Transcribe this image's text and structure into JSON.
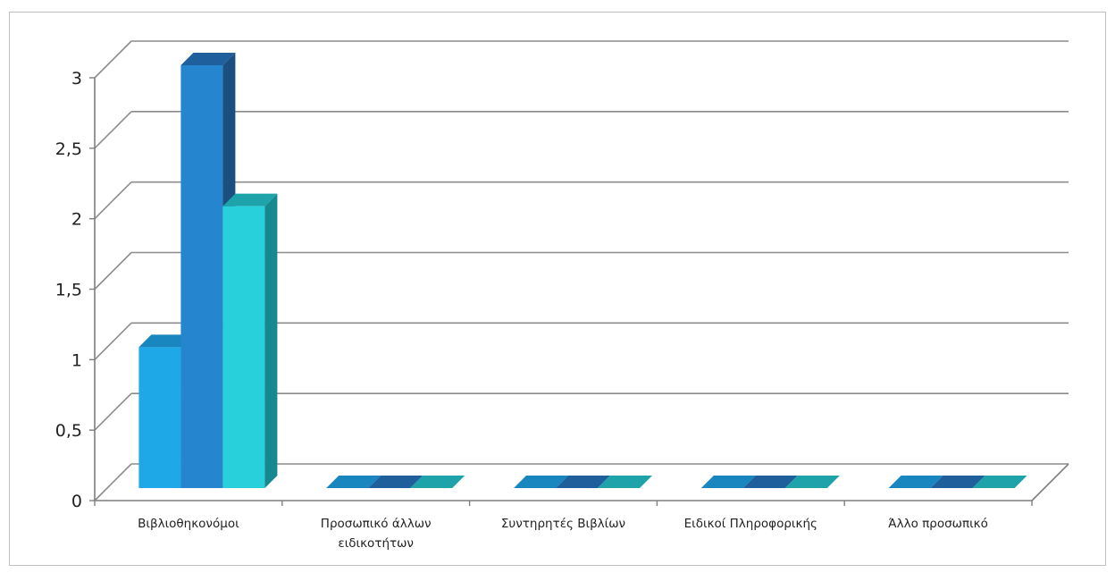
{
  "chart_data": {
    "type": "bar",
    "title": "",
    "xlabel": "",
    "ylabel": "",
    "categories": [
      "Βιβλιοθηκονόμοι",
      "Προσωπικό άλλων ειδικοτήτων",
      "Συντηρητές Βιβλίων",
      "Ειδικοί Πληροφορικής",
      "Άλλο προσωπικό"
    ],
    "category_lines": [
      [
        "Βιβλιοθηκονόμοι"
      ],
      [
        "Προσωπικό άλλων",
        "ειδικοτήτων"
      ],
      [
        "Συντηρητές Βιβλίων"
      ],
      [
        "Ειδικοί Πληροφορικής"
      ],
      [
        "Άλλο προσωπικό"
      ]
    ],
    "series": [
      {
        "values": [
          1,
          0,
          0,
          0,
          0
        ],
        "color": "#1fa8e8",
        "top_color": "#1a86bf",
        "side_color": "#1070a0"
      },
      {
        "values": [
          3,
          0,
          0,
          0,
          0
        ],
        "color": "#2585cf",
        "top_color": "#1f5f9c",
        "side_color": "#1a4f80"
      },
      {
        "values": [
          2,
          0,
          0,
          0,
          0
        ],
        "color": "#27d0da",
        "top_color": "#1fa3aa",
        "side_color": "#168890"
      }
    ],
    "ylim": [
      0,
      3
    ],
    "yticks": [
      "0",
      "0,5",
      "1",
      "1,5",
      "2",
      "2,5",
      "3"
    ],
    "grid": true,
    "style": "3d-column",
    "colors": {
      "grid": "#8c8c8c",
      "axis": "#7f7f7f"
    }
  }
}
